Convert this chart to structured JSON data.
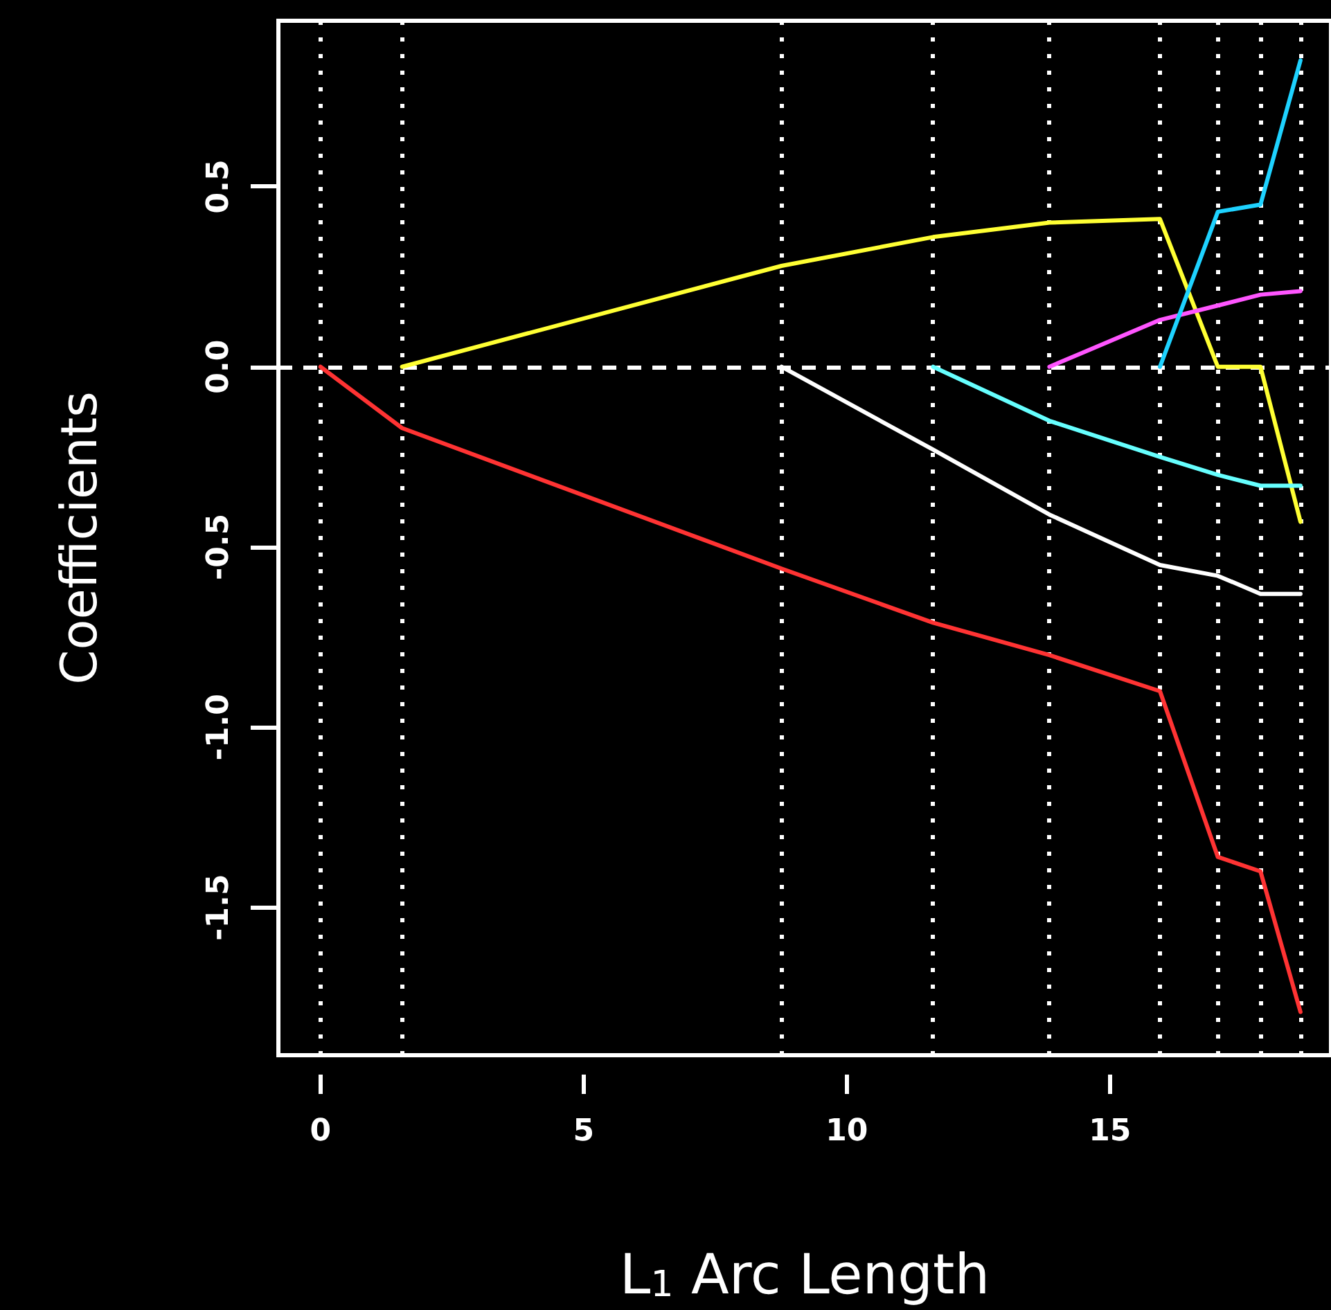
{
  "chart_data": {
    "type": "line",
    "xlabel": "L$_{1}$ Arc Length",
    "ylabel": "Coefficients",
    "xlim": [
      -0.8,
      19.2
    ],
    "ylim": [
      -1.91,
      0.96
    ],
    "xticks": [
      0,
      5,
      10,
      15
    ],
    "yticks": [
      -1.5,
      {
        "value": -1,
        "label": "-1.0"
      },
      -0.5,
      {
        "value": 0,
        "label": "0.0"
      },
      0.5
    ],
    "grid": false,
    "marker": "none",
    "line_style": "solid",
    "series": [
      {
        "color": "#ff3333",
        "x": [
          0,
          1.55,
          8.76,
          11.64,
          13.85,
          15.95,
          17.05,
          17.86,
          18.62
        ],
        "values": [
          0,
          -0.17,
          -0.56,
          -0.71,
          -0.8,
          -0.9,
          -1.36,
          -1.4,
          -1.79
        ]
      },
      {
        "color": "#ffff33",
        "x": [
          1.55,
          8.76,
          11.64,
          13.85,
          15.95,
          17.05,
          17.86,
          18.62
        ],
        "values": [
          0,
          0.28,
          0.36,
          0.4,
          0.41,
          0,
          0,
          -0.43
        ]
      },
      {
        "color": "#ffffff",
        "x": [
          8.76,
          11.64,
          13.85,
          15.95,
          17.05,
          17.86,
          18.62
        ],
        "values": [
          0,
          -0.23,
          -0.41,
          -0.55,
          -0.58,
          -0.63,
          -0.63
        ]
      },
      {
        "color": "#66ffff",
        "x": [
          11.64,
          13.85,
          15.95,
          17.05,
          17.86,
          18.62
        ],
        "values": [
          0,
          -0.15,
          -0.25,
          -0.3,
          -0.33,
          -0.33
        ]
      },
      {
        "color": "#ff55ff",
        "x": [
          13.85,
          15.95,
          17.05,
          17.86,
          18.62
        ],
        "values": [
          0,
          0.13,
          0.17,
          0.2,
          0.21
        ]
      },
      {
        "color": "#1ed2ff",
        "x": [
          15.95,
          17.05,
          17.86,
          18.62
        ],
        "values": [
          0,
          0.43,
          0.45,
          0.85
        ]
      }
    ],
    "ref_lines": [
      {
        "axis": "y",
        "value": 0,
        "color": "#ffffff",
        "line_style": "dashed"
      },
      {
        "axis": "x",
        "value": 0,
        "color": "#ffffff",
        "line_style": "dotted"
      },
      {
        "axis": "x",
        "value": 1.55,
        "color": "#ffffff",
        "line_style": "dotted"
      },
      {
        "axis": "x",
        "value": 8.76,
        "color": "#ffffff",
        "line_style": "dotted"
      },
      {
        "axis": "x",
        "value": 11.64,
        "color": "#ffffff",
        "line_style": "dotted"
      },
      {
        "axis": "x",
        "value": 13.85,
        "color": "#ffffff",
        "line_style": "dotted"
      },
      {
        "axis": "x",
        "value": 15.95,
        "color": "#ffffff",
        "line_style": "dotted"
      },
      {
        "axis": "x",
        "value": 17.05,
        "color": "#ffffff",
        "line_style": "dotted"
      },
      {
        "axis": "x",
        "value": 17.86,
        "color": "#ffffff",
        "line_style": "dotted"
      },
      {
        "axis": "x",
        "value": 18.62,
        "color": "#ffffff",
        "line_style": "dotted"
      }
    ]
  }
}
